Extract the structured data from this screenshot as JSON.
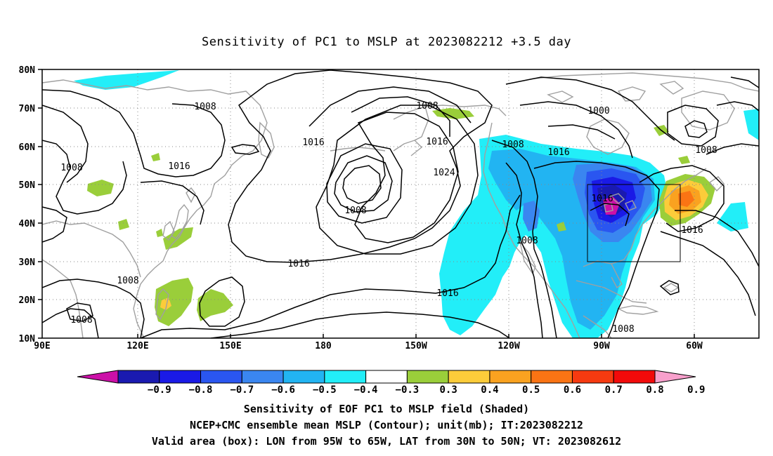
{
  "title": "Sensitivity of PC1 to MSLP at 2023082212 +3.5 day",
  "lat_labels": [
    "80N",
    "70N",
    "60N",
    "50N",
    "40N",
    "30N",
    "20N",
    "10N"
  ],
  "lon_labels": [
    "90E",
    "120E",
    "150E",
    "180",
    "150W",
    "120W",
    "90W",
    "60W"
  ],
  "contour_labels": [
    {
      "id": "c1",
      "text": "1008"
    },
    {
      "id": "c2",
      "text": "1008"
    },
    {
      "id": "c3",
      "text": "1016"
    },
    {
      "id": "c4",
      "text": "1016"
    },
    {
      "id": "c5",
      "text": "1008"
    },
    {
      "id": "c6",
      "text": "1016"
    },
    {
      "id": "c7",
      "text": "1024"
    },
    {
      "id": "c8",
      "text": "1008"
    },
    {
      "id": "c9",
      "text": "1008"
    },
    {
      "id": "c10",
      "text": "1000"
    },
    {
      "id": "c11",
      "text": "1016"
    },
    {
      "id": "c12",
      "text": "1008"
    },
    {
      "id": "c13",
      "text": "1016"
    },
    {
      "id": "c14",
      "text": "1016"
    },
    {
      "id": "c15",
      "text": "1008"
    },
    {
      "id": "c16",
      "text": "1016"
    },
    {
      "id": "c17",
      "text": "1016"
    },
    {
      "id": "c18",
      "text": "1008"
    },
    {
      "id": "c19",
      "text": "1008"
    },
    {
      "id": "c20",
      "text": "1008"
    }
  ],
  "colorbar": {
    "labels": [
      "-0.9",
      "-0.8",
      "-0.7",
      "-0.6",
      "-0.5",
      "-0.4",
      "-0.3",
      "0.3",
      "0.4",
      "0.5",
      "0.6",
      "0.7",
      "0.8",
      "0.9"
    ],
    "colors": [
      "#1a1ab0",
      "#1a1ae6",
      "#2a56f0",
      "#3a86f0",
      "#22b4f2",
      "#22eef8",
      "#ffffff",
      "#9ace3a",
      "#fccc3a",
      "#faa220",
      "#fa7414",
      "#f63a10",
      "#f20a0a"
    ],
    "left_arrow_color": "#cc10a8",
    "right_arrow_color": "#f8a0cc"
  },
  "captions": {
    "line1": "Sensitivity of EOF PC1 to MSLP field (Shaded)",
    "line2": "NCEP+CMC ensemble mean MSLP (Contour); unit(mb); IT:2023082212",
    "line3": "Valid area (box): LON from 95W to 65W, LAT from 30N to 50N; VT: 2023082612"
  }
}
